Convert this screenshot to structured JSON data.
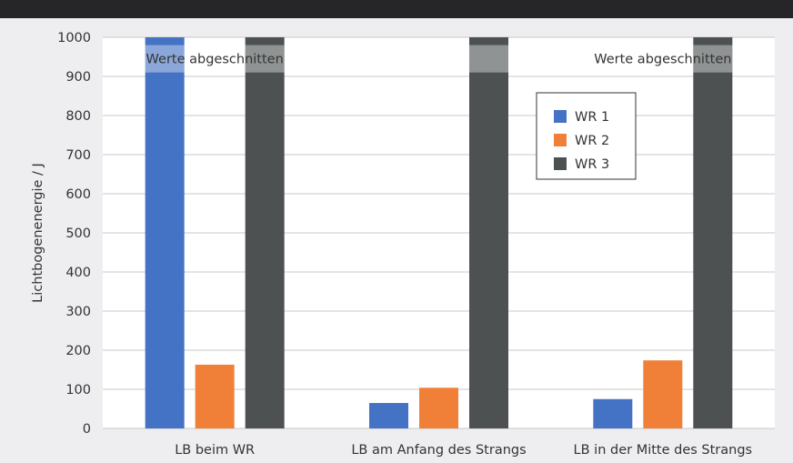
{
  "chart_data": {
    "type": "bar",
    "ylabel": "Lichtbogenenergie / J",
    "ylim": [
      0,
      1000
    ],
    "yticks": [
      0,
      100,
      200,
      300,
      400,
      500,
      600,
      700,
      800,
      900,
      1000
    ],
    "grid": true,
    "legend_position": "top-right",
    "categories": [
      "LB beim WR",
      "LB am Anfang des Strangs",
      "LB in der Mitte des Strangs"
    ],
    "series": [
      {
        "name": "WR 1",
        "color": "#4472c4",
        "values": [
          1000,
          65,
          75
        ],
        "clipped": [
          true,
          false,
          false
        ]
      },
      {
        "name": "WR 2",
        "color": "#f08038",
        "values": [
          163,
          104,
          174
        ],
        "clipped": [
          false,
          false,
          false
        ]
      },
      {
        "name": "WR 3",
        "color": "#4d5152",
        "values": [
          1000,
          1000,
          1000
        ],
        "clipped": [
          true,
          true,
          true
        ]
      }
    ],
    "annotations": [
      {
        "text": "Werte abgeschnitten",
        "category": 0
      },
      {
        "text": "Werte abgeschnitten",
        "category": 2
      }
    ]
  }
}
